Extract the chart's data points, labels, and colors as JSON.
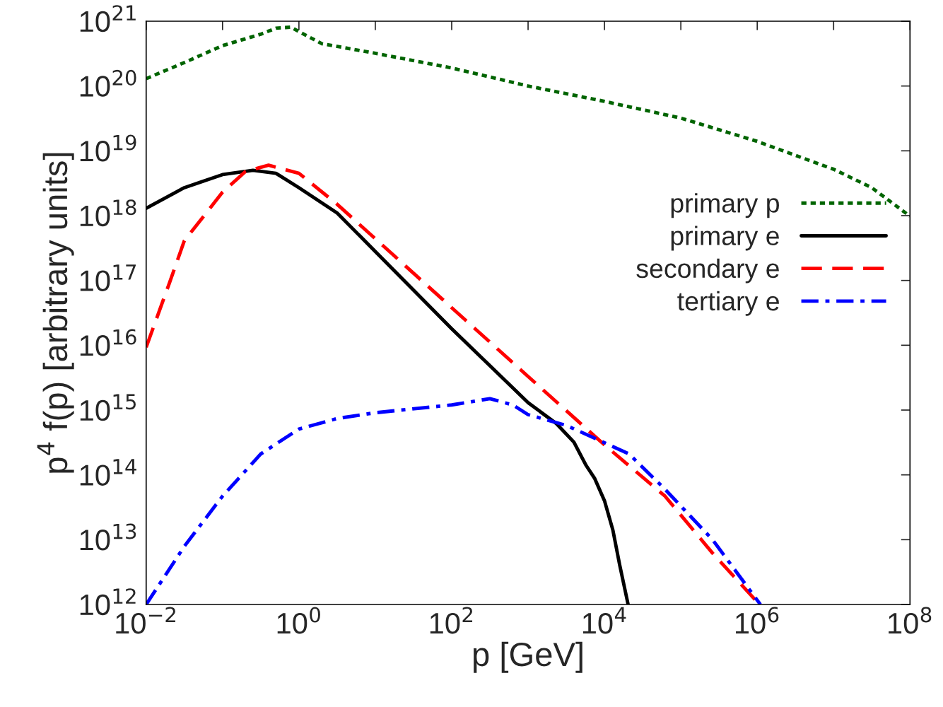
{
  "chart_data": {
    "type": "line",
    "xlabel": "p [GeV]",
    "ylabel": "p$^{4}$ f(p) [arbitrary units]",
    "log": "xy",
    "grid": false,
    "legend": "right",
    "xlim": [
      0.01,
      100000000.0
    ],
    "ylim": [
      1000000000000.0,
      1e+21
    ],
    "xticks": [
      {
        "value": 0.01,
        "label": "10$^{−2}$"
      },
      {
        "value": 0.1,
        "label": null
      },
      {
        "value": 1,
        "label": "10$^{0}$"
      },
      {
        "value": 10,
        "label": null
      },
      {
        "value": 100,
        "label": "10$^{2}$"
      },
      {
        "value": 1000,
        "label": null
      },
      {
        "value": 10000,
        "label": "10$^{4}$"
      },
      {
        "value": 100000,
        "label": null
      },
      {
        "value": 1000000,
        "label": "10$^{6}$"
      },
      {
        "value": 10000000,
        "label": null
      },
      {
        "value": 100000000,
        "label": "10$^{8}$"
      }
    ],
    "yticks": [
      {
        "value": 1000000000000.0,
        "label": "10$^{12}$"
      },
      {
        "value": 10000000000000.0,
        "label": "10$^{13}$"
      },
      {
        "value": 100000000000000.0,
        "label": "10$^{14}$"
      },
      {
        "value": 1000000000000000.0,
        "label": "10$^{15}$"
      },
      {
        "value": 1e+16,
        "label": "10$^{16}$"
      },
      {
        "value": 1e+17,
        "label": "10$^{17}$"
      },
      {
        "value": 1e+18,
        "label": "10$^{18}$"
      },
      {
        "value": 1e+19,
        "label": "10$^{19}$"
      },
      {
        "value": 1e+20,
        "label": "10$^{20}$"
      },
      {
        "value": 1e+21,
        "label": "10$^{21}$"
      }
    ],
    "series": [
      {
        "name": "primary p",
        "color": "#006400",
        "line_style": "dotted",
        "x": [
          0.01,
          0.0316,
          0.1,
          0.316,
          0.5,
          0.79,
          1,
          2,
          10,
          100,
          1000.0,
          10000.0,
          100000.0,
          1000000.0,
          10000000.0,
          31600000.0,
          100000000.0
        ],
        "values": [
          1.3e+20,
          2.3e+20,
          4.2e+20,
          6.3e+20,
          7.8e+20,
          8.1e+20,
          6.9e+20,
          4.5e+20,
          3.2e+20,
          1.9e+20,
          1e+20,
          5.8e+19,
          3.2e+19,
          1.4e+19,
          5.2e+18,
          2.7e+18,
          9.8e+17
        ]
      },
      {
        "name": "primary e",
        "color": "#000000",
        "line_style": "solid",
        "x": [
          0.01,
          0.0316,
          0.1,
          0.25,
          0.5,
          1,
          3.16,
          10,
          100,
          1000,
          2340,
          3980,
          5750,
          7410,
          10000.0,
          12900.0,
          15800.0,
          20400.0
        ],
        "values": [
          1.3e+18,
          2.7e+18,
          4.3e+18,
          5e+18,
          4.5e+18,
          2.7e+18,
          1.1e+18,
          2.8e+17,
          1.8e+16,
          1300000000000000.0,
          620000000000000.0,
          320000000000000.0,
          140000000000000.0,
          89000000000000.0,
          40000000000000.0,
          14000000000000.0,
          4100000000000.0,
          1000000000000.0
        ]
      },
      {
        "name": "secondary e",
        "color": "#ff0000",
        "line_style": "dashed",
        "x": [
          0.01,
          0.02,
          0.0316,
          0.1,
          0.2,
          0.4,
          1,
          3.16,
          10,
          100,
          1000,
          10000.0,
          62000.0,
          260000.0,
          1070000.0
        ],
        "values": [
          9300000000000000.0,
          8.9e+16,
          4.1e+17,
          2.3e+18,
          4.8e+18,
          6e+18,
          4.5e+18,
          1.5e+18,
          4.4e+17,
          3.8e+16,
          3300000000000000.0,
          290000000000000.0,
          47000000000000.0,
          6200000000000.0,
          1000000000000.0
        ]
      },
      {
        "name": "tertiary e",
        "color": "#0000ff",
        "line_style": "dashdot",
        "x": [
          0.01,
          0.0316,
          0.1,
          0.316,
          1,
          3.16,
          10,
          100,
          316,
          631,
          1000.0,
          3160.0,
          7000,
          21000.0,
          62000.0,
          260000.0,
          1100000.0
        ],
        "values": [
          1000000000000.0,
          7900000000000.0,
          47000000000000.0,
          210000000000000.0,
          510000000000000.0,
          740000000000000.0,
          910000000000000.0,
          1200000000000000.0,
          1500000000000000.0,
          1200000000000000.0,
          850000000000000.0,
          580000000000000.0,
          380000000000000.0,
          210000000000000.0,
          60000000000000.0,
          10000000000000.0,
          1000000000000.0
        ]
      }
    ]
  }
}
